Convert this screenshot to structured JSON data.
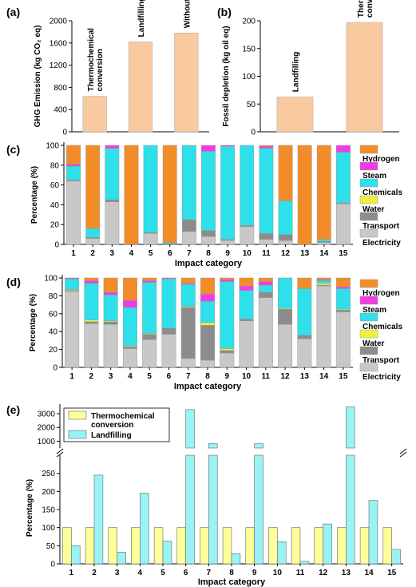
{
  "figure_labels": {
    "a": "(a)",
    "b": "(b)",
    "c": "(c)",
    "d": "(d)",
    "e": "(e)"
  },
  "colors": {
    "bar_fill": "#f9c9a0",
    "Hydrogen": "#f28c28",
    "Steam": "#f03ce6",
    "Chemicals": "#2ee0ea",
    "Water": "#f0f03c",
    "Transport": "#8c8c8c",
    "Electricity": "#c8c8c8",
    "thermo_fill": "#ffff99",
    "landfill_fill": "#99f3f5"
  },
  "legend_cd": [
    "Hydrogen",
    "Steam",
    "Chemicals",
    "Water",
    "Transport",
    "Electricity"
  ],
  "chart_data": [
    {
      "panel": "a",
      "type": "bar",
      "ylabel": "GHG Emission (kg CO₂ eq)",
      "ylim": [
        0,
        2000
      ],
      "yticks": [
        0,
        400,
        800,
        1200,
        1600,
        2000
      ],
      "categories": [
        "Thermochemical conversion",
        "Landfilling",
        "Without treatments"
      ],
      "bar_labels": [
        [
          "Thermochemical",
          "conversion"
        ],
        [
          "Landfilling"
        ],
        [
          "Without treatments"
        ]
      ],
      "values": [
        640,
        1620,
        1780
      ]
    },
    {
      "panel": "b",
      "type": "bar",
      "ylabel": "Fossil depletion (kg oil eq)",
      "ylim": [
        0,
        200
      ],
      "yticks": [
        0,
        50,
        100,
        150,
        200
      ],
      "categories": [
        "Landfilling",
        "Thermochemical conversion"
      ],
      "bar_labels": [
        [
          "Landfilling"
        ],
        [
          "Thermochemical",
          "conversion"
        ]
      ],
      "values": [
        63,
        197
      ]
    },
    {
      "panel": "c",
      "type": "bar",
      "stacked": true,
      "ylabel": "Percentage (%)",
      "xlabel": "Impact category",
      "ylim": [
        0,
        100
      ],
      "yticks": [
        0,
        20,
        40,
        60,
        80,
        100
      ],
      "categories": [
        "1",
        "2",
        "3",
        "4",
        "5",
        "6",
        "7",
        "8",
        "9",
        "10",
        "11",
        "12",
        "13",
        "14",
        "15"
      ],
      "series": [
        {
          "name": "Electricity",
          "values": [
            64,
            6,
            43,
            0,
            11,
            0,
            13,
            8,
            4,
            18,
            5,
            4,
            0,
            2,
            41
          ]
        },
        {
          "name": "Transport",
          "values": [
            1,
            1,
            2,
            0,
            1,
            1,
            12,
            6,
            1,
            1,
            6,
            6,
            0,
            1,
            1
          ]
        },
        {
          "name": "Water",
          "values": [
            0,
            0,
            0,
            0,
            0,
            0,
            0,
            0,
            0,
            0,
            0,
            0,
            0,
            0,
            0
          ]
        },
        {
          "name": "Chemicals",
          "values": [
            14,
            9,
            52,
            0,
            88,
            1,
            75,
            80,
            94,
            81,
            86,
            34,
            0,
            2,
            51
          ]
        },
        {
          "name": "Steam",
          "values": [
            2,
            0,
            3,
            0,
            0,
            0,
            0,
            6,
            1,
            0,
            2,
            0,
            0,
            0,
            7
          ]
        },
        {
          "name": "Hydrogen",
          "values": [
            19,
            84,
            0,
            100,
            0,
            98,
            0,
            0,
            0,
            0,
            1,
            56,
            100,
            95,
            0
          ]
        }
      ]
    },
    {
      "panel": "d",
      "type": "bar",
      "stacked": true,
      "ylabel": "Percentage (%)",
      "xlabel": "Impact category",
      "ylim": [
        0,
        100
      ],
      "yticks": [
        0,
        20,
        40,
        60,
        80,
        100
      ],
      "categories": [
        "1",
        "2",
        "3",
        "4",
        "5",
        "6",
        "7",
        "8",
        "9",
        "10",
        "11",
        "12",
        "13",
        "14",
        "15"
      ],
      "series": [
        {
          "name": "Electricity",
          "values": [
            85,
            49,
            48,
            21,
            31,
            37,
            10,
            8,
            16,
            52,
            78,
            48,
            32,
            91,
            62
          ]
        },
        {
          "name": "Transport",
          "values": [
            1,
            2,
            3,
            2,
            6,
            7,
            57,
            39,
            3,
            2,
            6,
            17,
            4,
            1,
            2
          ]
        },
        {
          "name": "Water",
          "values": [
            1,
            2,
            1,
            1,
            1,
            0,
            1,
            3,
            2,
            0,
            0,
            1,
            0,
            2,
            1
          ]
        },
        {
          "name": "Chemicals",
          "values": [
            12,
            41,
            29,
            43,
            57,
            55,
            25,
            24,
            75,
            32,
            8,
            34,
            52,
            3,
            23
          ]
        },
        {
          "name": "Steam",
          "values": [
            1,
            3,
            3,
            8,
            2,
            1,
            1,
            8,
            2,
            5,
            4,
            0,
            0,
            1,
            2
          ]
        },
        {
          "name": "Hydrogen",
          "values": [
            0,
            3,
            16,
            25,
            3,
            0,
            6,
            18,
            2,
            9,
            4,
            0,
            12,
            2,
            10
          ]
        }
      ]
    },
    {
      "panel": "e",
      "type": "bar",
      "ylabel": "Percentage (%)",
      "xlabel": "Impact category",
      "broken_axis": true,
      "ylim_lower": [
        0,
        300
      ],
      "ylim_upper": [
        500,
        3700
      ],
      "yticks_lower": [
        0,
        50,
        100,
        150,
        200,
        250
      ],
      "yticks_upper": [
        1000,
        2000,
        3000
      ],
      "categories": [
        "1",
        "2",
        "3",
        "4",
        "5",
        "6",
        "7",
        "8",
        "9",
        "10",
        "11",
        "12",
        "13",
        "14",
        "15"
      ],
      "series": [
        {
          "name": "Thermochemical conversion",
          "legend_label": [
            "Thermochemical",
            "conversion"
          ],
          "values": [
            100,
            100,
            100,
            100,
            100,
            100,
            100,
            100,
            100,
            100,
            100,
            100,
            100,
            100,
            100
          ]
        },
        {
          "name": "Landfilling",
          "legend_label": [
            "Landfilling"
          ],
          "values": [
            50,
            245,
            32,
            195,
            63,
            3300,
            820,
            28,
            820,
            61,
            7,
            110,
            3500,
            175,
            40
          ]
        }
      ]
    }
  ]
}
